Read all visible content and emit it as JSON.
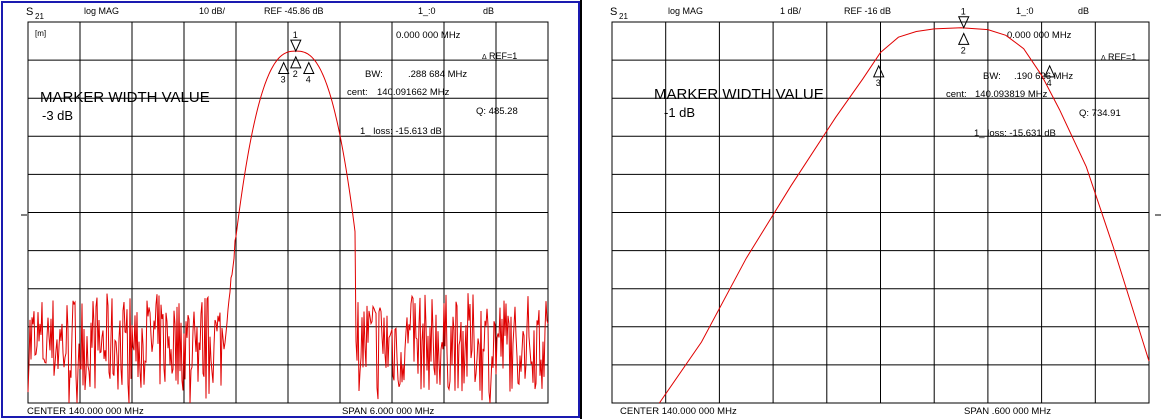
{
  "chart_data": [
    {
      "type": "line",
      "header": {
        "param": "S",
        "param_sub": "21",
        "format": "log MAG",
        "scale": "10 dB/",
        "ref": "REF -45.86 dB",
        "marker_readout": "1_:0",
        "marker_unit": "dB"
      },
      "icon_label": "[m]",
      "title": "MARKER WIDTH VALUE",
      "width_value": "-3 dB",
      "readouts": {
        "marker_freq": "0.000 000 MHz",
        "ref_marker": "REF=1",
        "bw_label": "BW:",
        "bw": ".288 684 MHz",
        "cent_label": "cent:",
        "cent": "140.091662 MHz",
        "q": "Q: 485.28",
        "loss": "1_ loss: -15.613 dB"
      },
      "footer": {
        "center": "CENTER 140.000 000 MHz",
        "span": "SPAN 6.000 000 MHz"
      },
      "x_range_mhz": [
        137.0,
        143.0
      ],
      "y_range_db": [
        -145.86,
        -45.86
      ],
      "grid": true,
      "trace_color": "#e00000",
      "trace_shape": {
        "peak_freq_mhz": 140.09,
        "peak_db": -53.5,
        "mid_cutoff_mhz": [
          139.26,
          140.78
        ],
        "mid_level_db": -116.0,
        "noise_mean_db": -130.0,
        "noise_amp_db": 13.0
      },
      "markers": [
        {
          "label": "1",
          "freq_mhz": 140.09,
          "db": -53.5,
          "side": "top"
        },
        {
          "label": "2",
          "freq_mhz": 140.09,
          "db": -55.0,
          "side": "bottom"
        },
        {
          "label": "3",
          "freq_mhz": 139.95,
          "db": -56.5,
          "side": "bottom"
        },
        {
          "label": "4",
          "freq_mhz": 140.24,
          "db": -56.5,
          "side": "bottom"
        }
      ]
    },
    {
      "type": "line",
      "header": {
        "param": "S",
        "param_sub": "21",
        "format": "log MAG",
        "scale": "1 dB/",
        "ref": "REF -16 dB",
        "marker_readout": "1_:0",
        "marker_unit": "dB"
      },
      "title": "MARKER WIDTH VALUE",
      "width_value": "-1 dB",
      "readouts": {
        "marker_freq": "0.000 000 MHz",
        "ref_marker": "REF=1",
        "bw_label": "BW:",
        "bw": ".190 626 MHz",
        "cent_label": "cent:",
        "cent": "140.093819 MHz",
        "q": "Q: 734.91",
        "loss": "1_ loss: -15.631 dB"
      },
      "footer": {
        "center": "CENTER 140.000 000 MHz",
        "span": "SPAN .600 000 MHz"
      },
      "x_range_mhz": [
        139.7,
        140.3
      ],
      "y_range_db": [
        -26.0,
        -16.0
      ],
      "grid": true,
      "trace_color": "#e00000",
      "trace_points": [
        [
          139.753,
          -26.0
        ],
        [
          139.8,
          -24.4
        ],
        [
          139.85,
          -22.2
        ],
        [
          139.9,
          -20.3
        ],
        [
          139.95,
          -18.5
        ],
        [
          139.98,
          -17.5
        ],
        [
          140.0,
          -16.8
        ],
        [
          140.02,
          -16.4
        ],
        [
          140.04,
          -16.25
        ],
        [
          140.06,
          -16.18
        ],
        [
          140.09,
          -16.15
        ],
        [
          140.12,
          -16.2
        ],
        [
          140.14,
          -16.35
        ],
        [
          140.16,
          -16.7
        ],
        [
          140.18,
          -17.4
        ],
        [
          140.2,
          -18.3
        ],
        [
          140.23,
          -19.8
        ],
        [
          140.26,
          -21.9
        ],
        [
          140.28,
          -23.4
        ],
        [
          140.3,
          -24.9
        ]
      ],
      "markers": [
        {
          "label": "1",
          "freq_mhz": 140.093,
          "db": -16.15,
          "side": "top"
        },
        {
          "label": "2",
          "freq_mhz": 140.093,
          "db": -16.3,
          "side": "bottom"
        },
        {
          "label": "3",
          "freq_mhz": 139.998,
          "db": -17.15,
          "side": "bottom"
        },
        {
          "label": "4",
          "freq_mhz": 140.189,
          "db": -17.15,
          "side": "bottom"
        }
      ]
    }
  ]
}
